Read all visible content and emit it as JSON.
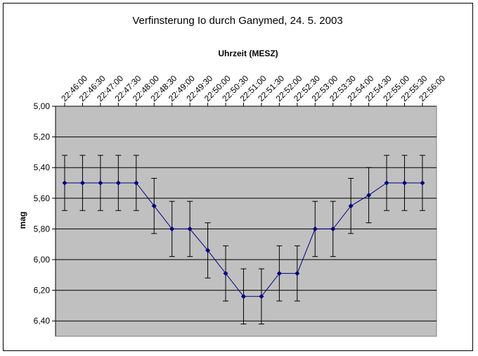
{
  "chart_data": {
    "type": "line",
    "title": "Verfinsterung Io durch Ganymed, 24. 5. 2003",
    "xlabel": "Uhrzeit (MESZ)",
    "ylabel": "mag",
    "y_reversed": true,
    "ylim": [
      5.0,
      6.5
    ],
    "y_ticks": [
      "5,00",
      "5,20",
      "5,40",
      "5,60",
      "5,80",
      "6,00",
      "6,20",
      "6,40"
    ],
    "y_tick_values": [
      5.0,
      5.2,
      5.4,
      5.6,
      5.8,
      6.0,
      6.2,
      6.4
    ],
    "x_axis_position": "top",
    "categories": [
      "22:46:00",
      "22:46:30",
      "22:47:00",
      "22:47:30",
      "22:48:00",
      "22:48:30",
      "22:49:00",
      "22:49:30",
      "22:50:00",
      "22:50:30",
      "22:51:00",
      "22:51:30",
      "22:52:00",
      "22:52:30",
      "22:53:00",
      "22:53:30",
      "22:54:00",
      "22:54:30",
      "22:55:00",
      "22:55:30",
      "22:56:00"
    ],
    "series": [
      {
        "values": [
          5.5,
          5.5,
          5.5,
          5.5,
          5.5,
          5.65,
          5.8,
          5.8,
          5.94,
          6.09,
          6.24,
          6.24,
          6.09,
          6.09,
          5.8,
          5.8,
          5.65,
          5.58,
          5.5,
          5.5,
          5.5
        ],
        "error": 0.18,
        "color": "#000080"
      }
    ],
    "grid": true,
    "plot_background": "#c0c0c0",
    "legend": "none"
  }
}
